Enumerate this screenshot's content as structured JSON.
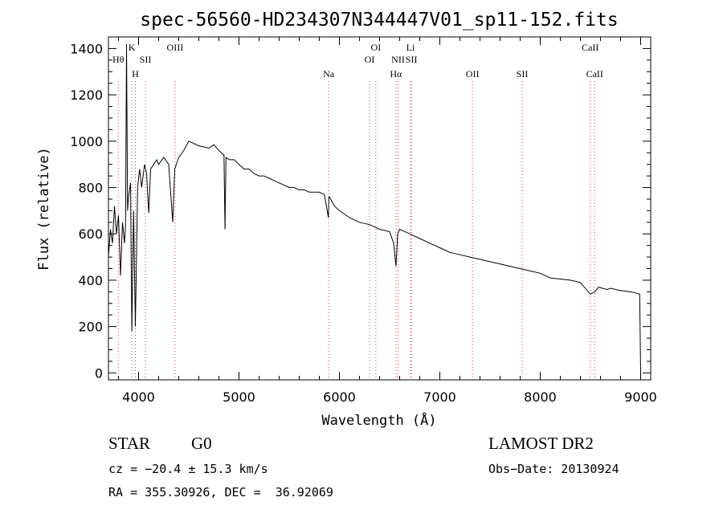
{
  "chart_data": {
    "type": "line",
    "title": "spec-56560-HD234307N344447V01_sp11-152.fits",
    "xlabel": "Wavelength (Å)",
    "ylabel": "Flux (relative)",
    "xlim": [
      3700,
      9100
    ],
    "ylim": [
      -30,
      1450
    ],
    "xticks": [
      4000,
      5000,
      6000,
      7000,
      8000,
      9000
    ],
    "yticks": [
      0,
      200,
      400,
      600,
      800,
      1000,
      1200,
      1400
    ],
    "grid": false,
    "series": [
      {
        "x": [
          3700,
          3720,
          3740,
          3760,
          3780,
          3800,
          3820,
          3840,
          3860,
          3870,
          3880,
          3890,
          3900,
          3920,
          3933,
          3950,
          3968,
          3990,
          4010,
          4030,
          4060,
          4080,
          4101,
          4120,
          4150,
          4180,
          4200,
          4250,
          4300,
          4340,
          4360,
          4400,
          4450,
          4500,
          4550,
          4600,
          4650,
          4700,
          4750,
          4800,
          4850,
          4861,
          4870,
          4900,
          4950,
          5000,
          5050,
          5100,
          5150,
          5200,
          5250,
          5300,
          5350,
          5400,
          5450,
          5500,
          5550,
          5600,
          5650,
          5700,
          5750,
          5800,
          5850,
          5890,
          5895,
          5900,
          5950,
          6000,
          6100,
          6200,
          6300,
          6400,
          6500,
          6540,
          6563,
          6580,
          6600,
          6700,
          6800,
          6900,
          7000,
          7100,
          7200,
          7300,
          7400,
          7500,
          7600,
          7700,
          7800,
          7900,
          8000,
          8100,
          8200,
          8300,
          8400,
          8498,
          8542,
          8580,
          8662,
          8700,
          8800,
          8900,
          8950,
          8990,
          9000
        ],
        "y": [
          500,
          620,
          560,
          720,
          600,
          680,
          420,
          650,
          560,
          640,
          1420,
          700,
          760,
          820,
          180,
          700,
          200,
          800,
          880,
          800,
          900,
          860,
          690,
          880,
          900,
          920,
          900,
          930,
          900,
          650,
          880,
          930,
          960,
          1000,
          990,
          980,
          975,
          970,
          985,
          960,
          940,
          620,
          930,
          920,
          920,
          900,
          880,
          880,
          860,
          850,
          850,
          840,
          830,
          820,
          810,
          800,
          800,
          790,
          790,
          780,
          780,
          780,
          770,
          670,
          760,
          760,
          720,
          700,
          670,
          650,
          640,
          620,
          610,
          560,
          460,
          600,
          620,
          600,
          580,
          560,
          540,
          520,
          510,
          500,
          490,
          480,
          470,
          460,
          450,
          440,
          430,
          410,
          405,
          400,
          390,
          340,
          350,
          370,
          360,
          365,
          355,
          350,
          345,
          340,
          0
        ]
      }
    ],
    "line_markers": [
      {
        "label": "Hθ",
        "x": 3798,
        "row": 1
      },
      {
        "label": "K",
        "x": 3933,
        "row": 0
      },
      {
        "label": "H",
        "x": 3968,
        "row": 2
      },
      {
        "label": "SII",
        "x": 4068,
        "row": 1
      },
      {
        "label": "OIII",
        "x": 4363,
        "row": 0
      },
      {
        "label": "Na",
        "x": 5893,
        "row": 3
      },
      {
        "label": "OI",
        "x": 6300,
        "row": 1
      },
      {
        "label": "OI",
        "x": 6363,
        "row": 0
      },
      {
        "label": "Hα",
        "x": 6563,
        "row": 3
      },
      {
        "label": "NII",
        "x": 6584,
        "row": 1
      },
      {
        "label": "Li",
        "x": 6708,
        "row": 0
      },
      {
        "label": "SII",
        "x": 6717,
        "row": 1
      },
      {
        "label": "OII",
        "x": 7325,
        "row": 3
      },
      {
        "label": "SII",
        "x": 7820,
        "row": 3
      },
      {
        "label": "CaII",
        "x": 8498,
        "row": 0
      },
      {
        "label": "CaII",
        "x": 8542,
        "row": 3
      }
    ]
  },
  "info": {
    "object_type": "STAR",
    "subclass": "G0",
    "survey": "LAMOST DR2",
    "cz": "cz = −20.4 ± 15.3 km/s",
    "obs_date": "Obs−Date: 20130924",
    "coords": "RA = 355.30926, DEC =  36.92069"
  }
}
